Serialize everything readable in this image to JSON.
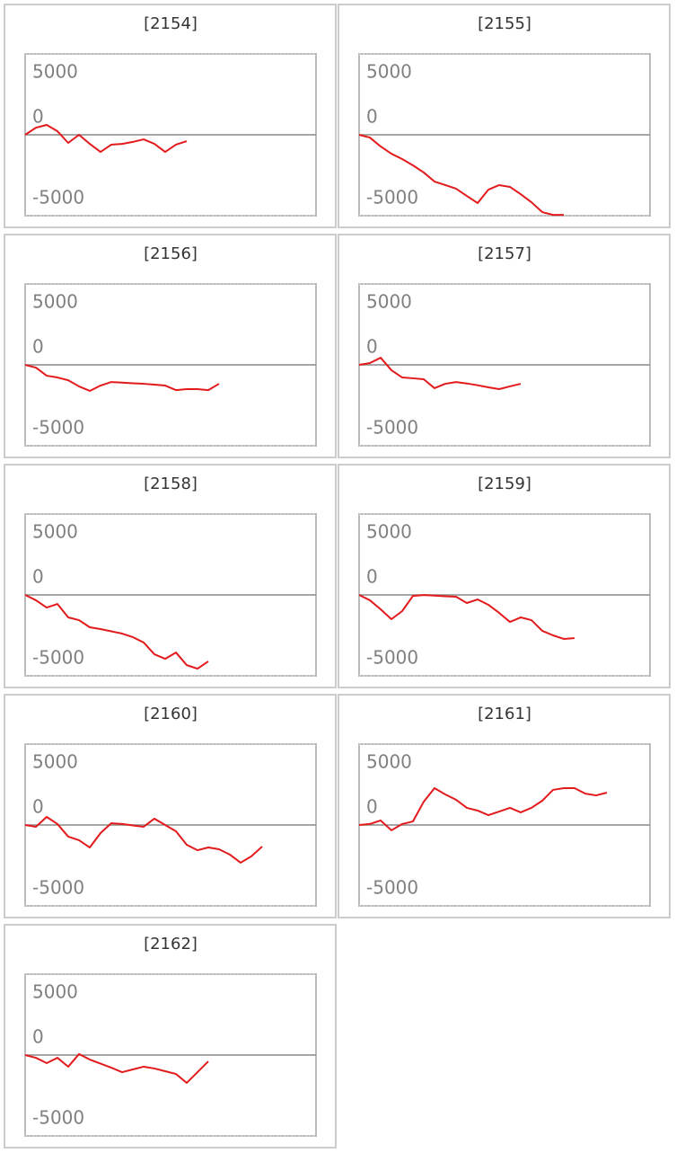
{
  "chart_data": [
    {
      "type": "line",
      "title": "[2154]",
      "color": "#e31a1c",
      "ylim": [
        -5000,
        5000
      ],
      "yticks": [
        5000,
        0,
        -5000
      ],
      "grid": true,
      "values": [
        0,
        440,
        610,
        220,
        -500,
        0,
        -560,
        -1060,
        -610,
        -560,
        -440,
        -280,
        -560,
        -1060,
        -610,
        -390
      ]
    },
    {
      "type": "line",
      "title": "[2155]",
      "color": "#e31a1c",
      "ylim": [
        -5000,
        5000
      ],
      "yticks": [
        5000,
        0,
        -5000
      ],
      "grid": true,
      "values": [
        0,
        -170,
        -720,
        -1170,
        -1500,
        -1890,
        -2330,
        -2890,
        -3110,
        -3330,
        -3780,
        -4220,
        -3390,
        -3110,
        -3220,
        -3670,
        -4170,
        -4780,
        -4950,
        -4950
      ]
    },
    {
      "type": "line",
      "title": "[2156]",
      "color": "#e31a1c",
      "ylim": [
        -5000,
        5000
      ],
      "yticks": [
        5000,
        0,
        -5000
      ],
      "grid": true,
      "values": [
        0,
        -170,
        -670,
        -780,
        -950,
        -1330,
        -1610,
        -1280,
        -1060,
        -1100,
        -1140,
        -1170,
        -1220,
        -1280,
        -1560,
        -1500,
        -1500,
        -1560,
        -1170
      ]
    },
    {
      "type": "line",
      "title": "[2157]",
      "color": "#e31a1c",
      "ylim": [
        -5000,
        5000
      ],
      "yticks": [
        5000,
        0,
        -5000
      ],
      "grid": true,
      "values": [
        0,
        110,
        440,
        -330,
        -780,
        -830,
        -890,
        -1440,
        -1170,
        -1060,
        -1150,
        -1260,
        -1390,
        -1500,
        -1330,
        -1170
      ]
    },
    {
      "type": "line",
      "title": "[2158]",
      "color": "#e31a1c",
      "ylim": [
        -5000,
        5000
      ],
      "yticks": [
        5000,
        0,
        -5000
      ],
      "grid": true,
      "values": [
        0,
        -330,
        -780,
        -560,
        -1390,
        -1560,
        -2000,
        -2110,
        -2250,
        -2390,
        -2610,
        -2940,
        -3670,
        -3950,
        -3560,
        -4340,
        -4560,
        -4110
      ]
    },
    {
      "type": "line",
      "title": "[2159]",
      "color": "#e31a1c",
      "ylim": [
        -5000,
        5000
      ],
      "yticks": [
        5000,
        0,
        -5000
      ],
      "grid": true,
      "values": [
        0,
        -330,
        -890,
        -1500,
        -1000,
        -60,
        -10,
        -40,
        -80,
        -110,
        -500,
        -280,
        -610,
        -1110,
        -1670,
        -1390,
        -1560,
        -2220,
        -2500,
        -2720,
        -2670
      ]
    },
    {
      "type": "line",
      "title": "[2160]",
      "color": "#e31a1c",
      "ylim": [
        -5000,
        5000
      ],
      "yticks": [
        5000,
        0,
        -5000
      ],
      "grid": true,
      "values": [
        0,
        -110,
        500,
        60,
        -720,
        -940,
        -1390,
        -500,
        110,
        60,
        -30,
        -110,
        390,
        0,
        -390,
        -1220,
        -1560,
        -1390,
        -1500,
        -1830,
        -2330,
        -1940,
        -1330
      ]
    },
    {
      "type": "line",
      "title": "[2161]",
      "color": "#e31a1c",
      "ylim": [
        -5000,
        5000
      ],
      "yticks": [
        5000,
        0,
        -5000
      ],
      "grid": true,
      "values": [
        0,
        60,
        280,
        -330,
        60,
        220,
        1440,
        2280,
        1890,
        1560,
        1060,
        890,
        610,
        830,
        1060,
        780,
        1060,
        1500,
        2170,
        2280,
        2280,
        1940,
        1830,
        2000
      ]
    },
    {
      "type": "line",
      "title": "[2162]",
      "color": "#e31a1c",
      "ylim": [
        -5000,
        5000
      ],
      "yticks": [
        5000,
        0,
        -5000
      ],
      "grid": true,
      "values": [
        0,
        -170,
        -500,
        -170,
        -720,
        60,
        -280,
        -530,
        -780,
        -1060,
        -890,
        -720,
        -830,
        -1000,
        -1170,
        -1720,
        -1060,
        -390
      ]
    }
  ]
}
